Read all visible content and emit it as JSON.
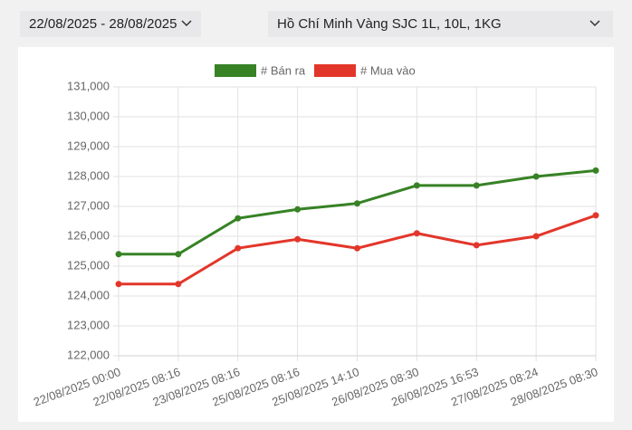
{
  "controls": {
    "date_range": "22/08/2025 - 28/08/2025",
    "product": "Hồ Chí Minh Vàng SJC 1L, 10L, 1KG"
  },
  "chart_data": {
    "type": "line",
    "categories": [
      "22/08/2025 00:00",
      "22/08/2025 08:16",
      "23/08/2025 08:16",
      "25/08/2025 08:16",
      "25/08/2025 14:10",
      "26/08/2025 08:30",
      "26/08/2025 16:53",
      "27/08/2025 08:24",
      "28/08/2025 08:30"
    ],
    "series": [
      {
        "name": "# Bán ra",
        "color": "#378225",
        "values": [
          125400,
          125400,
          126600,
          126900,
          127100,
          127700,
          127700,
          128000,
          128200
        ]
      },
      {
        "name": "# Mua vào",
        "color": "#e3362a",
        "values": [
          124400,
          124400,
          125600,
          125900,
          125600,
          126100,
          125700,
          126000,
          126700
        ]
      }
    ],
    "ylim": [
      122000,
      131000
    ],
    "yticks": [
      {
        "value": 122000,
        "label": "122,000"
      },
      {
        "value": 123000,
        "label": "123,000"
      },
      {
        "value": 124000,
        "label": "124,000"
      },
      {
        "value": 125000,
        "label": "125,000"
      },
      {
        "value": 126000,
        "label": "126,000"
      },
      {
        "value": 127000,
        "label": "127,000"
      },
      {
        "value": 128000,
        "label": "128,000"
      },
      {
        "value": 129000,
        "label": "129,000"
      },
      {
        "value": 130000,
        "label": "130,000"
      },
      {
        "value": 131000,
        "label": "131,000"
      }
    ],
    "grid": true,
    "legend": "top"
  }
}
